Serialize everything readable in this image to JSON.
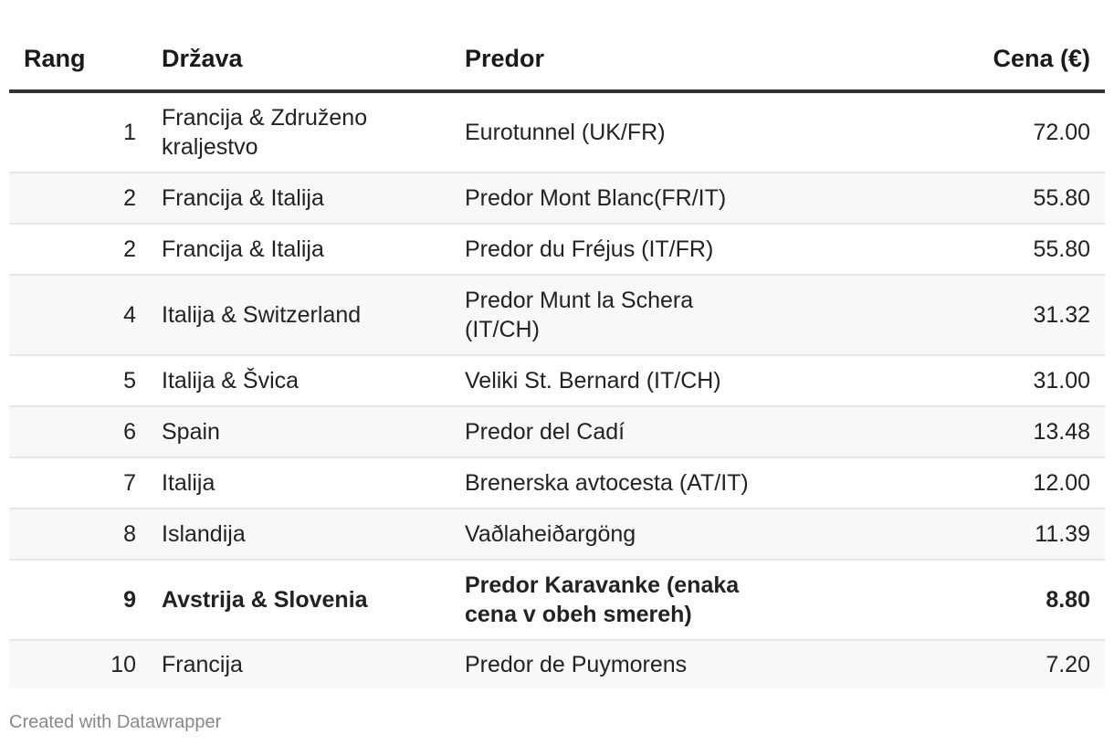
{
  "chart_data": {
    "type": "table",
    "columns": [
      "Rang",
      "Država",
      "Predor",
      "Cena (€)"
    ],
    "rows": [
      {
        "rank": "1",
        "country": "Francija & Združeno kraljestvo",
        "tunnel": "Eurotunnel (UK/FR)",
        "price": "72.00",
        "bold": false
      },
      {
        "rank": "2",
        "country": "Francija & Italija",
        "tunnel": "Predor Mont Blanc(FR/IT)",
        "price": "55.80",
        "bold": false
      },
      {
        "rank": "2",
        "country": "Francija & Italija",
        "tunnel": "Predor du Fréjus (IT/FR)",
        "price": "55.80",
        "bold": false
      },
      {
        "rank": "4",
        "country": "Italija & Switzerland",
        "tunnel": "Predor Munt la Schera (IT/CH)",
        "price": "31.32",
        "bold": false
      },
      {
        "rank": "5",
        "country": "Italija & Švica",
        "tunnel": "Veliki St. Bernard (IT/CH)",
        "price": "31.00",
        "bold": false
      },
      {
        "rank": "6",
        "country": "Spain",
        "tunnel": "Predor del Cadí",
        "price": "13.48",
        "bold": false
      },
      {
        "rank": "7",
        "country": "Italija",
        "tunnel": "Brenerska avtocesta (AT/IT)",
        "price": "12.00",
        "bold": false
      },
      {
        "rank": "8",
        "country": "Islandija",
        "tunnel": "Vaðlaheiðargöng",
        "price": "11.39",
        "bold": false
      },
      {
        "rank": "9",
        "country": "Avstrija & Slovenia",
        "tunnel": "Predor Karavanke (enaka cena v obeh smereh)",
        "price": "8.80",
        "bold": true
      },
      {
        "rank": "10",
        "country": "Francija",
        "tunnel": "Predor de Puymorens",
        "price": "7.20",
        "bold": false
      }
    ]
  },
  "footer": {
    "credit": "Created with Datawrapper"
  }
}
